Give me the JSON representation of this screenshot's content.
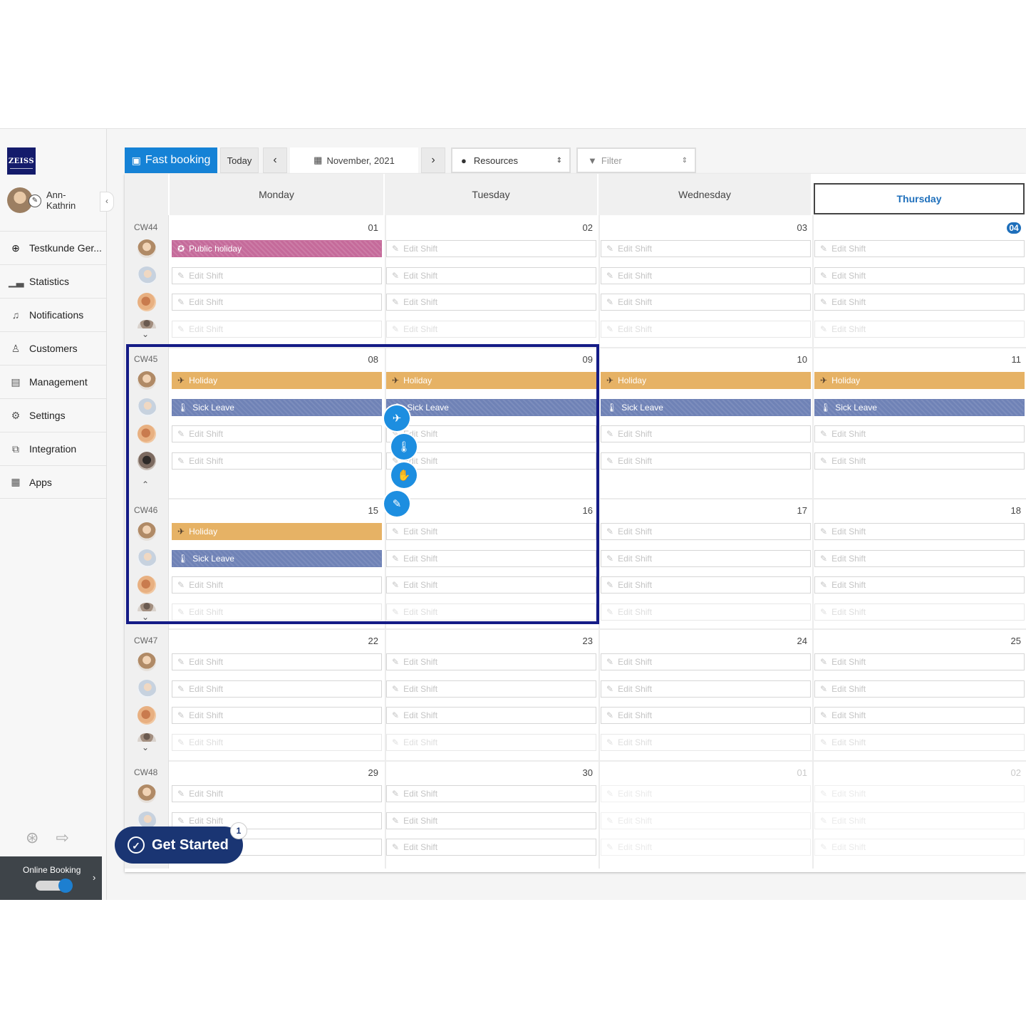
{
  "sidebar": {
    "logo": "ZEISS",
    "user": "Ann-\nKathrin",
    "items": [
      {
        "label": "Testkunde Ger...",
        "icon": "circle-plus-icon"
      },
      {
        "label": "Statistics",
        "icon": "bar-chart-icon"
      },
      {
        "label": "Notifications",
        "icon": "bell-icon"
      },
      {
        "label": "Customers",
        "icon": "user-icon"
      },
      {
        "label": "Management",
        "icon": "briefcase-icon"
      },
      {
        "label": "Settings",
        "icon": "gears-icon"
      },
      {
        "label": "Integration",
        "icon": "puzzle-icon"
      },
      {
        "label": "Apps",
        "icon": "grid-icon"
      }
    ],
    "online_booking": "Online Booking"
  },
  "toolbar": {
    "fast_booking": "Fast booking",
    "today": "Today",
    "month": "November, 2021",
    "resources": "Resources",
    "filter": "Filter"
  },
  "calendar": {
    "days": [
      "Monday",
      "Tuesday",
      "Wednesday",
      "Thursday"
    ],
    "today_day": "Thursday",
    "weeks": [
      {
        "cw": "CW44",
        "dates": [
          "01",
          "02",
          "03",
          "04"
        ]
      },
      {
        "cw": "CW45",
        "dates": [
          "08",
          "09",
          "10",
          "11"
        ]
      },
      {
        "cw": "CW46",
        "dates": [
          "15",
          "16",
          "17",
          "18"
        ]
      },
      {
        "cw": "CW47",
        "dates": [
          "22",
          "23",
          "24",
          "25"
        ]
      },
      {
        "cw": "CW48",
        "dates": [
          "29",
          "30",
          "01",
          "02"
        ]
      }
    ],
    "labels": {
      "edit_shift": "Edit Shift",
      "holiday": "Holiday",
      "sick_leave": "Sick Leave",
      "public_holiday": "Public holiday"
    }
  },
  "get_started": {
    "label": "Get Started",
    "badge": "1"
  }
}
